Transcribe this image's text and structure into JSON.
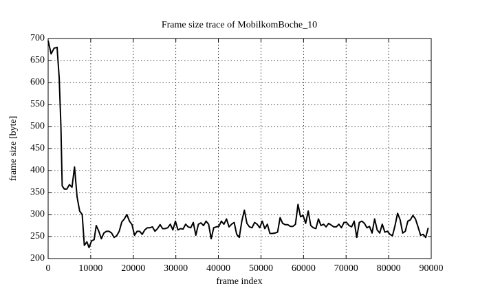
{
  "chart_data": {
    "type": "line",
    "title": "Frame size trace of MobilkomBoche_10",
    "xlabel": "frame index",
    "ylabel": "frame size [byte]",
    "xlim": [
      0,
      90000
    ],
    "xticks": [
      0,
      10000,
      20000,
      30000,
      40000,
      50000,
      60000,
      70000,
      80000,
      90000
    ],
    "ylim": [
      200,
      700
    ],
    "yticks": [
      200,
      250,
      300,
      350,
      400,
      450,
      500,
      550,
      600,
      650,
      700
    ],
    "grid": true,
    "x": [
      0,
      700,
      1400,
      2100,
      2600,
      3000,
      3300,
      3800,
      4400,
      5000,
      5600,
      6200,
      6800,
      7400,
      8000,
      8500,
      9100,
      9600,
      10200,
      10800,
      11300,
      11900,
      12500,
      13100,
      13700,
      14300,
      14900,
      15500,
      16100,
      16700,
      17300,
      17900,
      18500,
      19100,
      19700,
      20300,
      20900,
      21500,
      22100,
      22700,
      23300,
      23900,
      24500,
      25100,
      25700,
      26300,
      26900,
      27500,
      28100,
      28700,
      29300,
      29900,
      30500,
      31100,
      31700,
      32300,
      32900,
      33500,
      34100,
      34700,
      35300,
      35900,
      36500,
      37100,
      37700,
      38300,
      38900,
      39500,
      40100,
      40700,
      41300,
      41900,
      42500,
      43100,
      43700,
      44300,
      44900,
      45500,
      46100,
      46700,
      47300,
      47900,
      48500,
      49100,
      49700,
      50300,
      50900,
      51500,
      52100,
      52700,
      53300,
      53900,
      54500,
      55100,
      55700,
      56300,
      56900,
      57500,
      58100,
      58700,
      59300,
      59900,
      60500,
      61100,
      61700,
      62300,
      62900,
      63500,
      64100,
      64700,
      65300,
      65900,
      66500,
      67100,
      67700,
      68300,
      68900,
      69500,
      70100,
      70700,
      71300,
      71900,
      72500,
      73100,
      73700,
      74300,
      74900,
      75500,
      76100,
      76700,
      77300,
      77900,
      78500,
      79100,
      79700,
      80300,
      80900,
      81500,
      82100,
      82700,
      83300,
      83900,
      84500,
      85100,
      85700,
      86300,
      86900,
      87500,
      88100,
      88700,
      89300
    ],
    "series": [
      {
        "name": "frame size",
        "color": "#000000",
        "values": [
          695,
          665,
          678,
          680,
          610,
          500,
          365,
          358,
          358,
          368,
          362,
          408,
          340,
          308,
          300,
          230,
          238,
          225,
          240,
          243,
          275,
          262,
          245,
          258,
          262,
          262,
          258,
          248,
          252,
          262,
          283,
          290,
          300,
          285,
          277,
          253,
          262,
          262,
          255,
          265,
          270,
          270,
          272,
          262,
          268,
          277,
          268,
          268,
          270,
          278,
          265,
          285,
          265,
          268,
          267,
          278,
          272,
          270,
          282,
          253,
          278,
          281,
          275,
          285,
          278,
          245,
          270,
          272,
          273,
          285,
          278,
          290,
          272,
          278,
          282,
          255,
          248,
          285,
          310,
          280,
          272,
          270,
          282,
          278,
          270,
          285,
          268,
          278,
          257,
          257,
          258,
          260,
          293,
          280,
          277,
          277,
          273,
          273,
          278,
          323,
          295,
          298,
          280,
          308,
          275,
          270,
          268,
          290,
          275,
          278,
          272,
          280,
          276,
          272,
          272,
          278,
          270,
          282,
          282,
          275,
          272,
          285,
          248,
          282,
          285,
          280,
          270,
          273,
          258,
          290,
          265,
          258,
          278,
          260,
          262,
          255,
          252,
          275,
          303,
          288,
          258,
          262,
          285,
          288,
          298,
          290,
          272,
          253,
          255,
          248,
          270
        ]
      }
    ]
  }
}
